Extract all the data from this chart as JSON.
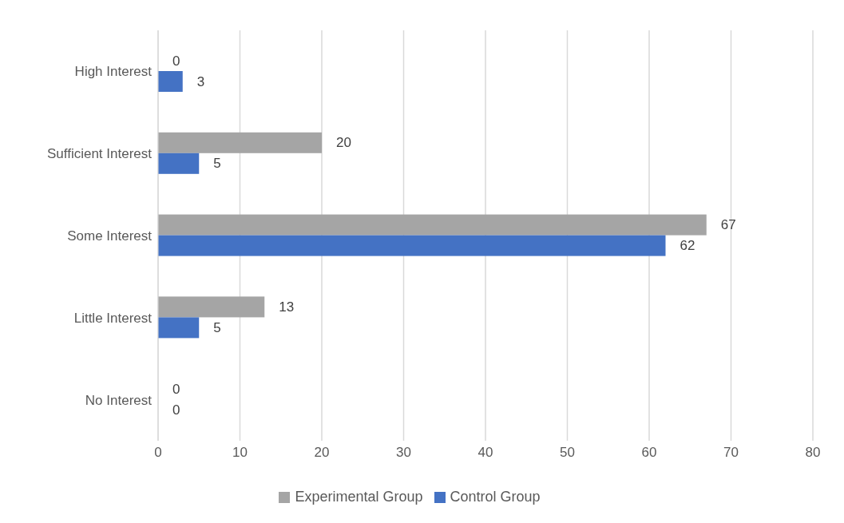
{
  "chart_data": {
    "type": "bar",
    "orientation": "horizontal",
    "categories": [
      "High Interest",
      "Sufficient Interest",
      "Some Interest",
      "Little Interest",
      "No Interest"
    ],
    "series": [
      {
        "name": "Experimental Group",
        "color": "#a5a5a5",
        "values": [
          0,
          20,
          67,
          13,
          0
        ]
      },
      {
        "name": "Control Group",
        "color": "#4472c4",
        "values": [
          3,
          5,
          62,
          5,
          0
        ]
      }
    ],
    "xlim": [
      0,
      80
    ],
    "xticks": [
      0,
      10,
      20,
      30,
      40,
      50,
      60,
      70,
      80
    ],
    "grid": "x",
    "legend": "bottom",
    "data_labels": true
  }
}
